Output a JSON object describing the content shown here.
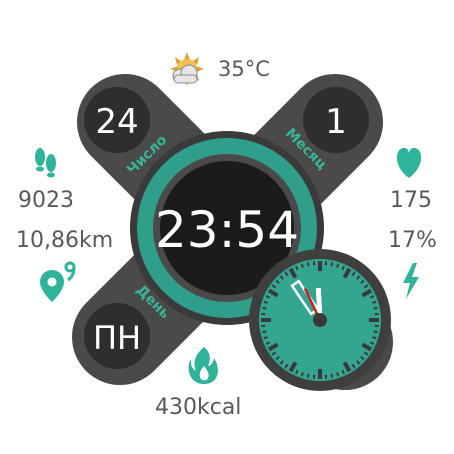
{
  "weather": {
    "icon": "partly-cloudy-sun-icon",
    "temperature": "35°C"
  },
  "date": {
    "day_number": "24",
    "day_label": "Число",
    "month_number": "1",
    "month_label": "Месяц",
    "weekday": "ПН",
    "weekday_label": "День"
  },
  "time": {
    "digital": "23:54"
  },
  "analog": {
    "hour": 23,
    "minute": 54,
    "second": 20
  },
  "left": {
    "steps_icon": "footsteps-icon",
    "steps": "9023",
    "distance": "10,86km",
    "distance_icon": "location-pin-icon"
  },
  "right": {
    "heart_icon": "heart-icon",
    "heart_rate": "175",
    "battery": "17%",
    "battery_icon": "lightning-icon"
  },
  "bottom": {
    "calories_icon": "flame-icon",
    "calories": "430kcal"
  },
  "colors": {
    "accent": "#34a58f",
    "dark": "#2b2b2b",
    "panel": "#3d3d3d",
    "text": "#555a5f",
    "second_hand": "#cc1f1f",
    "label": "#36b59b"
  }
}
